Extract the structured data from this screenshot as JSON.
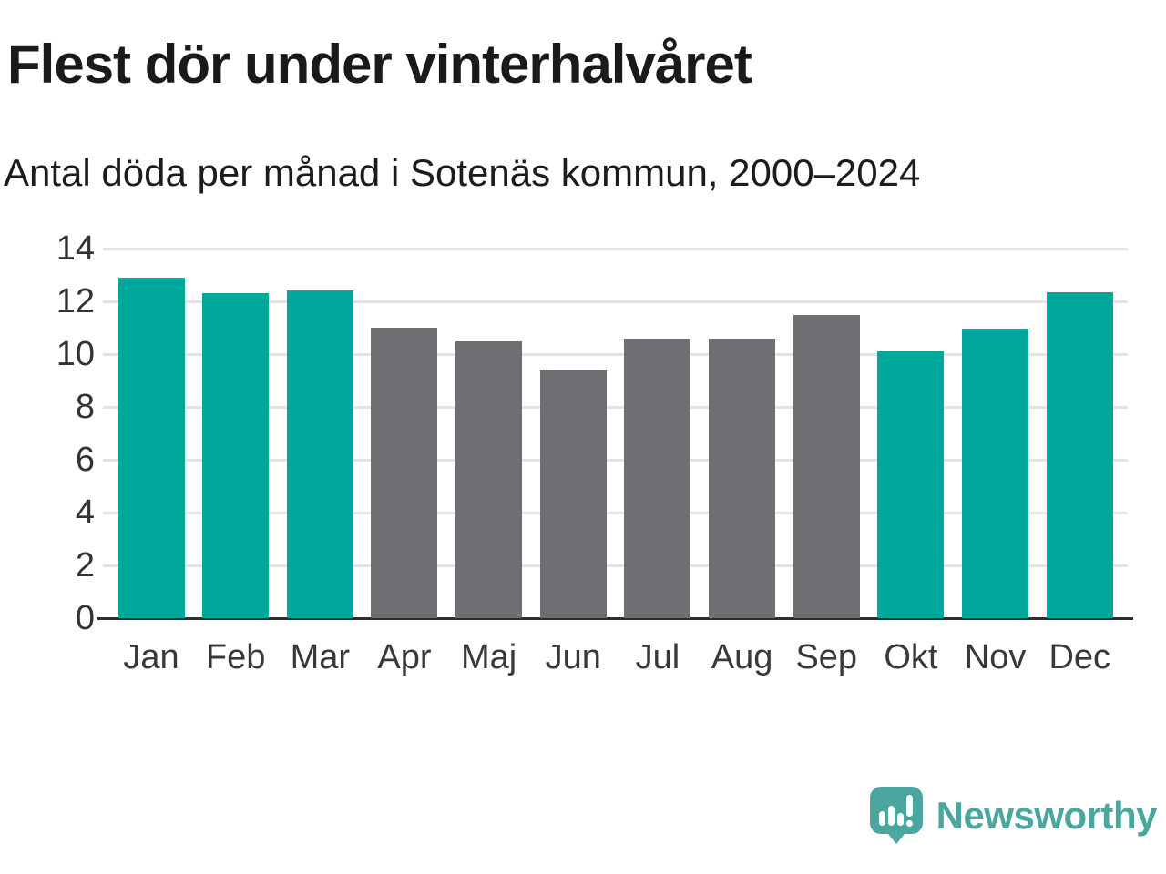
{
  "header": {
    "title": "Flest dör under vinterhalvåret",
    "subtitle": "Antal döda per månad i Sotenäs kommun, 2000–2024"
  },
  "chart_data": {
    "type": "bar",
    "title": "Flest dör under vinterhalvåret",
    "subtitle": "Antal döda per månad i Sotenäs kommun, 2000–2024",
    "categories": [
      "Jan",
      "Feb",
      "Mar",
      "Apr",
      "Maj",
      "Jun",
      "Jul",
      "Aug",
      "Sep",
      "Okt",
      "Nov",
      "Dec"
    ],
    "values": [
      12.9,
      12.3,
      12.4,
      11.0,
      10.5,
      9.4,
      10.6,
      10.6,
      11.5,
      10.1,
      10.95,
      12.35
    ],
    "bar_colors": [
      "#00a79b",
      "#00a79b",
      "#00a79b",
      "#6e6e73",
      "#6e6e73",
      "#6e6e73",
      "#6e6e73",
      "#6e6e73",
      "#6e6e73",
      "#00a79b",
      "#00a79b",
      "#00a79b"
    ],
    "xlabel": "",
    "ylabel": "",
    "ylim": [
      0,
      14
    ],
    "yticks": [
      0,
      2,
      4,
      6,
      8,
      10,
      12,
      14
    ],
    "grid": "horizontal",
    "legend": "none",
    "colors": {
      "winter_months": "#00a79b",
      "summer_months": "#6e6e73",
      "gridline": "#e3e3e3",
      "axis_line": "#2d2d2d",
      "title_text": "#1a1a1a",
      "tick_text": "#333333"
    }
  },
  "branding": {
    "name": "Newsworthy",
    "logo_icon": "speech-bubble-bar-chart-icon",
    "color": "#4ba69f"
  }
}
